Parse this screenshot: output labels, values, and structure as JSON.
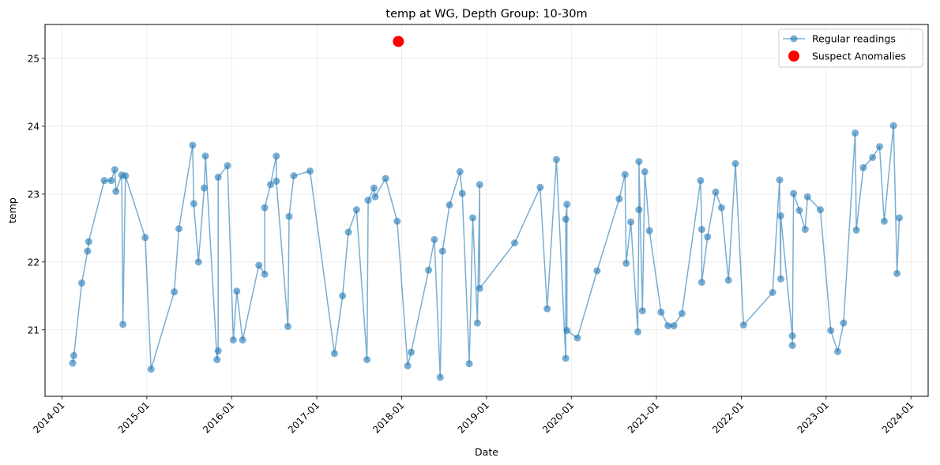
{
  "chart_data": {
    "type": "scatter",
    "title": "temp at WG, Depth Group: 10-30m",
    "xlabel": "Date",
    "ylabel": "temp",
    "xlim": [
      "2013-10-20",
      "2024-03-15"
    ],
    "ylim": [
      20.02,
      25.5
    ],
    "x_ticks": [
      "2014-01-01",
      "2015-01-01",
      "2016-01-01",
      "2017-01-01",
      "2018-01-01",
      "2019-01-01",
      "2020-01-01",
      "2021-01-01",
      "2022-01-01",
      "2023-01-01",
      "2024-01-01"
    ],
    "x_tick_labels": [
      "2014-01",
      "2015-01",
      "2016-01",
      "2017-01",
      "2018-01",
      "2019-01",
      "2020-01",
      "2021-01",
      "2022-01",
      "2023-01",
      "2024-01"
    ],
    "y_ticks": [
      21,
      22,
      23,
      24,
      25
    ],
    "grid": true,
    "legend_position": "upper-right",
    "colors": {
      "regular": "#1f77b4",
      "anomaly": "#ff0000"
    },
    "series": [
      {
        "name": "Regular readings",
        "style": "line-with-markers",
        "points": [
          [
            "2014-02-16",
            20.51
          ],
          [
            "2014-02-21",
            20.62
          ],
          [
            "2014-03-27",
            21.69
          ],
          [
            "2014-04-21",
            22.16
          ],
          [
            "2014-04-26",
            22.3
          ],
          [
            "2014-07-02",
            23.2
          ],
          [
            "2014-08-01",
            23.2
          ],
          [
            "2014-08-16",
            23.36
          ],
          [
            "2014-08-21",
            23.04
          ],
          [
            "2014-09-15",
            23.28
          ],
          [
            "2014-09-20",
            21.08
          ],
          [
            "2014-10-01",
            23.27
          ],
          [
            "2014-12-25",
            22.36
          ],
          [
            "2015-01-19",
            20.42
          ],
          [
            "2015-04-29",
            21.56
          ],
          [
            "2015-05-19",
            22.49
          ],
          [
            "2015-07-17",
            23.72
          ],
          [
            "2015-07-22",
            22.86
          ],
          [
            "2015-08-11",
            22.0
          ],
          [
            "2015-09-05",
            23.09
          ],
          [
            "2015-09-10",
            23.56
          ],
          [
            "2015-10-30",
            20.56
          ],
          [
            "2015-11-04",
            20.69
          ],
          [
            "2015-11-04",
            23.25
          ],
          [
            "2015-12-14",
            23.42
          ],
          [
            "2016-01-08",
            20.85
          ],
          [
            "2016-01-23",
            21.57
          ],
          [
            "2016-02-17",
            20.85
          ],
          [
            "2016-04-27",
            21.95
          ],
          [
            "2016-05-22",
            21.82
          ],
          [
            "2016-05-22",
            22.8
          ],
          [
            "2016-06-16",
            23.14
          ],
          [
            "2016-07-11",
            23.56
          ],
          [
            "2016-07-11",
            23.19
          ],
          [
            "2016-08-30",
            21.05
          ],
          [
            "2016-09-04",
            22.67
          ],
          [
            "2016-09-24",
            23.27
          ],
          [
            "2016-12-03",
            23.34
          ],
          [
            "2017-03-18",
            20.65
          ],
          [
            "2017-04-22",
            21.5
          ],
          [
            "2017-05-17",
            22.44
          ],
          [
            "2017-06-21",
            22.77
          ],
          [
            "2017-08-05",
            20.56
          ],
          [
            "2017-08-10",
            22.91
          ],
          [
            "2017-09-04",
            23.09
          ],
          [
            "2017-09-09",
            22.96
          ],
          [
            "2017-10-24",
            23.23
          ],
          [
            "2017-12-13",
            22.6
          ],
          [
            "2018-01-27",
            20.47
          ],
          [
            "2018-02-11",
            20.67
          ],
          [
            "2018-04-27",
            21.88
          ],
          [
            "2018-05-22",
            22.33
          ],
          [
            "2018-06-16",
            20.3
          ],
          [
            "2018-06-26",
            22.16
          ],
          [
            "2018-07-26",
            22.84
          ],
          [
            "2018-09-09",
            23.33
          ],
          [
            "2018-09-19",
            23.01
          ],
          [
            "2018-10-19",
            20.5
          ],
          [
            "2018-11-03",
            22.65
          ],
          [
            "2018-11-23",
            21.1
          ],
          [
            "2018-12-03",
            23.14
          ],
          [
            "2018-12-03",
            21.61
          ],
          [
            "2019-05-02",
            22.28
          ],
          [
            "2019-08-20",
            23.1
          ],
          [
            "2019-09-19",
            21.31
          ],
          [
            "2019-10-29",
            23.51
          ],
          [
            "2019-12-08",
            20.58
          ],
          [
            "2019-12-08",
            22.63
          ],
          [
            "2019-12-13",
            22.85
          ],
          [
            "2019-12-13",
            20.99
          ],
          [
            "2020-01-27",
            20.88
          ],
          [
            "2020-04-21",
            21.87
          ],
          [
            "2020-07-25",
            22.93
          ],
          [
            "2020-08-19",
            23.29
          ],
          [
            "2020-08-24",
            21.98
          ],
          [
            "2020-09-13",
            22.59
          ],
          [
            "2020-10-13",
            20.97
          ],
          [
            "2020-10-18",
            22.77
          ],
          [
            "2020-10-18",
            23.48
          ],
          [
            "2020-11-02",
            21.28
          ],
          [
            "2020-11-12",
            23.33
          ],
          [
            "2020-12-02",
            22.46
          ],
          [
            "2021-01-21",
            21.26
          ],
          [
            "2021-02-20",
            21.06
          ],
          [
            "2021-03-17",
            21.06
          ],
          [
            "2021-04-21",
            21.24
          ],
          [
            "2021-07-10",
            23.2
          ],
          [
            "2021-07-15",
            22.48
          ],
          [
            "2021-07-15",
            21.7
          ],
          [
            "2021-08-09",
            22.37
          ],
          [
            "2021-09-13",
            23.03
          ],
          [
            "2021-10-08",
            22.8
          ],
          [
            "2021-11-07",
            21.73
          ],
          [
            "2021-12-07",
            23.45
          ],
          [
            "2022-01-11",
            21.07
          ],
          [
            "2022-05-16",
            21.55
          ],
          [
            "2022-06-15",
            23.21
          ],
          [
            "2022-06-20",
            21.75
          ],
          [
            "2022-06-20",
            22.68
          ],
          [
            "2022-08-09",
            20.91
          ],
          [
            "2022-08-09",
            20.77
          ],
          [
            "2022-08-14",
            23.01
          ],
          [
            "2022-09-08",
            22.76
          ],
          [
            "2022-10-03",
            22.48
          ],
          [
            "2022-10-13",
            22.96
          ],
          [
            "2022-12-07",
            22.77
          ],
          [
            "2023-01-21",
            20.99
          ],
          [
            "2023-02-20",
            20.68
          ],
          [
            "2023-03-17",
            21.1
          ],
          [
            "2023-05-06",
            23.9
          ],
          [
            "2023-05-11",
            22.47
          ],
          [
            "2023-06-10",
            23.39
          ],
          [
            "2023-07-20",
            23.54
          ],
          [
            "2023-08-19",
            23.7
          ],
          [
            "2023-09-08",
            22.6
          ],
          [
            "2023-10-18",
            24.01
          ],
          [
            "2023-11-02",
            21.83
          ],
          [
            "2023-11-12",
            22.65
          ]
        ]
      },
      {
        "name": "Suspect Anomalies",
        "style": "markers",
        "points": [
          [
            "2017-12-18",
            25.25
          ]
        ]
      }
    ]
  }
}
